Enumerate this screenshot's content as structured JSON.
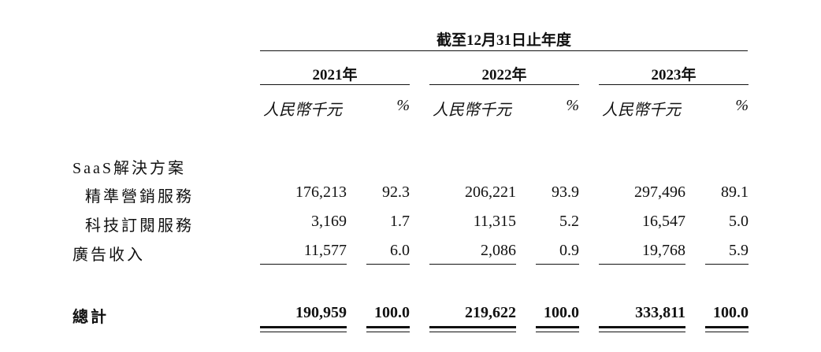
{
  "header": {
    "period": "截至12月31日止年度",
    "years": [
      "2021年",
      "2022年",
      "2023年"
    ],
    "unit_label": "人民幣千元",
    "pct_label": "%"
  },
  "rows": {
    "saas": {
      "label": "SaaS解決方案"
    },
    "precision": {
      "label": "精準營銷服務",
      "values": [
        "176,213",
        "92.3",
        "206,221",
        "93.9",
        "297,496",
        "89.1"
      ]
    },
    "tech": {
      "label": "科技訂閱服務",
      "values": [
        "3,169",
        "1.7",
        "11,315",
        "5.2",
        "16,547",
        "5.0"
      ]
    },
    "ads": {
      "label": "廣告收入",
      "values": [
        "11,577",
        "6.0",
        "2,086",
        "0.9",
        "19,768",
        "5.9"
      ]
    },
    "total": {
      "label": "總計",
      "values": [
        "190,959",
        "100.0",
        "219,622",
        "100.0",
        "333,811",
        "100.0"
      ]
    }
  }
}
